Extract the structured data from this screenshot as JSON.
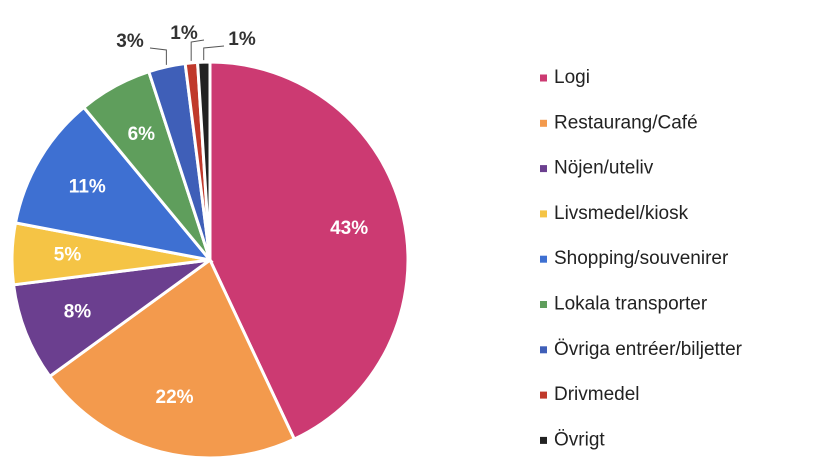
{
  "chart_data": {
    "type": "pie",
    "categories": [
      "Logi",
      "Restaurang/Café",
      "Nöjen/uteliv",
      "Livsmedel/kiosk",
      "Shopping/souvenirer",
      "Lokala transporter",
      "Övriga entréer/biljetter",
      "Drivmedel",
      "Övrigt"
    ],
    "values": [
      43,
      22,
      8,
      5,
      11,
      6,
      3,
      1,
      1
    ],
    "value_labels": [
      "43%",
      "22%",
      "8%",
      "5%",
      "11%",
      "6%",
      "3%",
      "1%",
      "1%"
    ],
    "colors": [
      "#cc3a72",
      "#f39a4d",
      "#6b3f8f",
      "#f5c445",
      "#3e70d2",
      "#5f9e5c",
      "#3f5fb8",
      "#c0392b",
      "#222222"
    ],
    "legend": "right"
  }
}
